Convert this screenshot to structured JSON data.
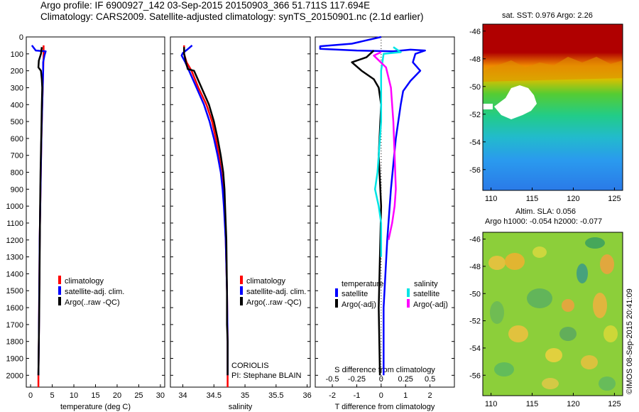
{
  "header": {
    "line1": "Argo profile: IF 6900927_142 03-Sep-2015 20150903_366 51.711S 117.694E",
    "line2": "Climatology: CARS2009. Satellite-adjusted climatology: synTS_20150901.nc (2.1d earlier)"
  },
  "colors": {
    "climatology": "#ff0000",
    "satellite": "#0000ff",
    "argo": "#000000",
    "salinity_satellite": "#00e5e5",
    "salinity_argo": "#ff00ff"
  },
  "chart_data": [
    {
      "type": "line",
      "id": "temperature",
      "xlabel": "temperature (deg C)",
      "ylabel": "",
      "xlim": [
        -1,
        31
      ],
      "ylim": [
        2070,
        0
      ],
      "xticks": [
        0,
        5,
        10,
        15,
        20,
        25,
        30
      ],
      "yticks": [
        0,
        100,
        200,
        300,
        400,
        500,
        600,
        700,
        800,
        900,
        1000,
        1100,
        1200,
        1300,
        1400,
        1500,
        1600,
        1700,
        1800,
        1900,
        2000
      ],
      "series": [
        {
          "name": "climatology",
          "color": "#ff0000",
          "points": [
            [
              3.0,
              50
            ],
            [
              3.0,
              100
            ],
            [
              2.9,
              200
            ],
            [
              2.7,
              400
            ],
            [
              2.5,
              600
            ],
            [
              2.3,
              900
            ],
            [
              2.1,
              1200
            ],
            [
              2.0,
              1500
            ],
            [
              1.9,
              1800
            ],
            [
              1.8,
              2000
            ],
            [
              1.8,
              2070
            ]
          ]
        },
        {
          "name": "satellite-adj. clim.",
          "color": "#0000ff",
          "points": [
            [
              0.3,
              50
            ],
            [
              1.2,
              80
            ],
            [
              3.5,
              85
            ],
            [
              3.2,
              110
            ],
            [
              2.9,
              150
            ],
            [
              2.9,
              200
            ],
            [
              2.7,
              400
            ],
            [
              2.5,
              600
            ],
            [
              2.3,
              900
            ],
            [
              2.1,
              1200
            ],
            [
              2.0,
              1500
            ],
            [
              1.9,
              1800
            ],
            [
              1.8,
              2000
            ]
          ]
        },
        {
          "name": "Argo(..raw -QC)",
          "color": "#000000",
          "points": [
            [
              2.6,
              60
            ],
            [
              2.4,
              100
            ],
            [
              1.9,
              140
            ],
            [
              1.8,
              180
            ],
            [
              2.4,
              200
            ],
            [
              2.6,
              250
            ],
            [
              2.7,
              300
            ],
            [
              2.6,
              400
            ],
            [
              2.5,
              550
            ],
            [
              2.3,
              800
            ],
            [
              2.2,
              1000
            ],
            [
              2.1,
              1300
            ],
            [
              2.0,
              1600
            ],
            [
              1.9,
              1800
            ],
            [
              1.8,
              2000
            ]
          ]
        }
      ],
      "legend": [
        {
          "label": "climatology",
          "color": "#ff0000"
        },
        {
          "label": "satellite-adj. clim.",
          "color": "#0000ff"
        },
        {
          "label": "Argo(..raw -QC)",
          "color": "#000000"
        }
      ]
    },
    {
      "type": "line",
      "id": "salinity",
      "xlabel": "salinity",
      "xlim": [
        33.8,
        36.05
      ],
      "ylim": [
        2070,
        0
      ],
      "xticks": [
        34,
        34.5,
        35,
        35.5,
        36
      ],
      "xticklabels": [
        "34",
        "34.5",
        "35",
        "35.5",
        "36"
      ],
      "series": [
        {
          "name": "climatology",
          "color": "#ff0000",
          "points": [
            [
              34.02,
              50
            ],
            [
              34.02,
              100
            ],
            [
              34.06,
              150
            ],
            [
              34.14,
              200
            ],
            [
              34.25,
              300
            ],
            [
              34.38,
              400
            ],
            [
              34.47,
              500
            ],
            [
              34.53,
              600
            ],
            [
              34.58,
              700
            ],
            [
              34.62,
              800
            ],
            [
              34.65,
              900
            ],
            [
              34.67,
              1000
            ],
            [
              34.69,
              1200
            ],
            [
              34.71,
              1500
            ],
            [
              34.72,
              1800
            ],
            [
              34.72,
              2000
            ],
            [
              34.72,
              2070
            ]
          ]
        },
        {
          "name": "satellite-adj. clim.",
          "color": "#0000ff",
          "points": [
            [
              34.15,
              50
            ],
            [
              34.07,
              75
            ],
            [
              34.0,
              95
            ],
            [
              33.98,
              110
            ],
            [
              34.04,
              150
            ],
            [
              34.1,
              200
            ],
            [
              34.22,
              300
            ],
            [
              34.34,
              400
            ],
            [
              34.43,
              500
            ],
            [
              34.5,
              600
            ],
            [
              34.56,
              700
            ],
            [
              34.61,
              800
            ],
            [
              34.64,
              900
            ],
            [
              34.66,
              1000
            ],
            [
              34.69,
              1200
            ],
            [
              34.71,
              1500
            ],
            [
              34.72,
              1800
            ],
            [
              34.72,
              1900
            ],
            [
              34.72,
              2000
            ]
          ]
        },
        {
          "name": "Argo(..raw -QC)",
          "color": "#000000",
          "points": [
            [
              34.02,
              60
            ],
            [
              34.02,
              100
            ],
            [
              34.05,
              150
            ],
            [
              34.08,
              190
            ],
            [
              34.18,
              200
            ],
            [
              34.3,
              300
            ],
            [
              34.42,
              400
            ],
            [
              34.5,
              500
            ],
            [
              34.56,
              600
            ],
            [
              34.61,
              700
            ],
            [
              34.65,
              800
            ],
            [
              34.67,
              900
            ],
            [
              34.68,
              1000
            ],
            [
              34.7,
              1200
            ],
            [
              34.71,
              1500
            ],
            [
              34.71,
              1700
            ],
            [
              34.72,
              1800
            ],
            [
              34.72,
              2000
            ]
          ]
        }
      ],
      "legend": [
        {
          "label": "climatology",
          "color": "#ff0000"
        },
        {
          "label": "satellite-adj. clim.",
          "color": "#0000ff"
        },
        {
          "label": "Argo(..raw -QC)",
          "color": "#000000"
        }
      ],
      "annotation": {
        "line1": "CORIOLIS",
        "line2": "PI: Stephane BLAIN"
      }
    },
    {
      "type": "line",
      "id": "difference",
      "xlabel": "T difference from climatology",
      "top_xlabel": "S difference from climatology",
      "xlim": [
        -2.7,
        3.0
      ],
      "ylim": [
        2070,
        0
      ],
      "xticks": [
        -2,
        -1,
        0,
        1,
        2
      ],
      "top_xticks": [
        -0.5,
        -0.25,
        0,
        0.25,
        0.5
      ],
      "series": [
        {
          "name": "temperature satellite",
          "color": "#0000ff",
          "points": [
            [
              0.0,
              0
            ],
            [
              -1.2,
              40
            ],
            [
              -2.5,
              55
            ],
            [
              -2.5,
              70
            ],
            [
              -1.0,
              80
            ],
            [
              0.5,
              85
            ],
            [
              1.2,
              75
            ],
            [
              1.8,
              80
            ],
            [
              1.4,
              100
            ],
            [
              1.3,
              150
            ],
            [
              1.6,
              200
            ],
            [
              1.2,
              260
            ],
            [
              0.9,
              320
            ],
            [
              0.8,
              400
            ],
            [
              0.6,
              600
            ],
            [
              0.4,
              900
            ],
            [
              0.25,
              1200
            ],
            [
              0.1,
              1600
            ],
            [
              0.1,
              2000
            ]
          ]
        },
        {
          "name": "temperature Argo(-adj)",
          "color": "#000000",
          "points": [
            [
              -0.3,
              80
            ],
            [
              -0.6,
              120
            ],
            [
              -1.2,
              150
            ],
            [
              -0.8,
              200
            ],
            [
              -0.3,
              250
            ],
            [
              -0.1,
              300
            ],
            [
              0.0,
              400
            ],
            [
              -0.1,
              700
            ],
            [
              0.0,
              1000
            ],
            [
              -0.05,
              1300
            ],
            [
              -0.1,
              1600
            ],
            [
              -0.05,
              2000
            ]
          ]
        },
        {
          "name": "salinity satellite",
          "color": "#00e5e5",
          "points": [
            [
              0.5,
              60
            ],
            [
              0.8,
              90
            ],
            [
              0.1,
              100
            ],
            [
              0.0,
              200
            ],
            [
              0.0,
              500
            ],
            [
              -0.15,
              800
            ],
            [
              -0.25,
              900
            ],
            [
              -0.1,
              1000
            ],
            [
              0.0,
              1100
            ],
            [
              0.0,
              1300
            ]
          ]
        },
        {
          "name": "salinity Argo(-adj)",
          "color": "#ff00ff",
          "points": [
            [
              0.0,
              90
            ],
            [
              -0.3,
              110
            ],
            [
              0.2,
              180
            ],
            [
              0.4,
              300
            ],
            [
              0.5,
              500
            ],
            [
              0.55,
              700
            ],
            [
              0.6,
              900
            ],
            [
              0.55,
              1000
            ],
            [
              0.45,
              1100
            ],
            [
              0.3,
              1200
            ]
          ]
        }
      ],
      "legend_titles": {
        "left": "temperature",
        "right": "salinity"
      },
      "legend": [
        {
          "label": "satellite",
          "color": "#0000ff",
          "column": "left"
        },
        {
          "label": "Argo(-adj)",
          "color": "#000000",
          "column": "left"
        },
        {
          "label": "satellite",
          "color": "#00e5e5",
          "column": "right"
        },
        {
          "label": "Argo(-adj)",
          "color": "#ff00ff",
          "column": "right"
        }
      ]
    },
    {
      "type": "heatmap",
      "id": "sst",
      "title": "sat. SST: 0.976 Argo: 2.26",
      "xticks": [
        110,
        115,
        120,
        125
      ],
      "yticks": [
        -46,
        -48,
        -50,
        -52,
        -54,
        -56
      ],
      "xlim": [
        109,
        126
      ],
      "ylim": [
        -57.5,
        -45.5
      ]
    },
    {
      "type": "heatmap",
      "id": "sla",
      "title": "Altim. SLA: 0.056",
      "subtitle": "Argo h1000: -0.054 h2000: -0.077",
      "xticks": [
        110,
        115,
        120,
        125
      ],
      "yticks": [
        -46,
        -48,
        -50,
        -52,
        -54,
        -56
      ],
      "xlim": [
        109,
        126
      ],
      "ylim": [
        -57.5,
        -45.5
      ]
    }
  ],
  "footer": {
    "credit": "©IMOS 08-Sep-2015 20:41:09"
  }
}
